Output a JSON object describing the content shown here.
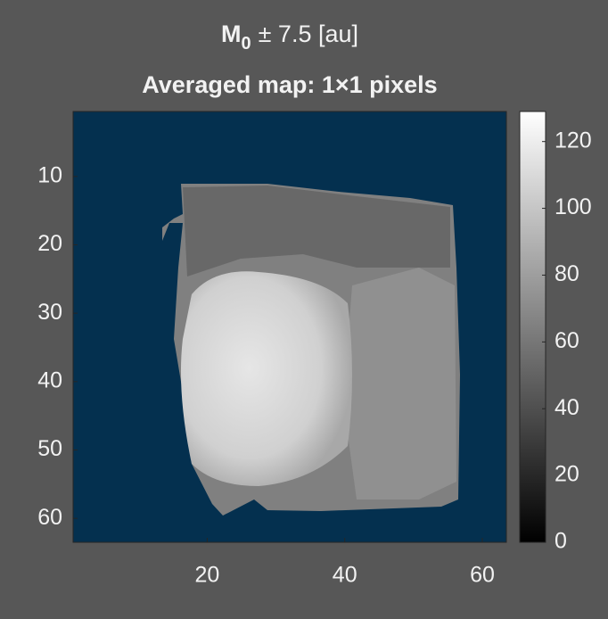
{
  "chart_data": {
    "type": "image",
    "title": {
      "symbol": "M",
      "subscript": "0",
      "rest": "± 7.5 [au]"
    },
    "subtitle": "Averaged map: 1×1 pixels",
    "colormap": "gray",
    "background_color": "#04304f",
    "xlim": [
      0.5,
      63.5
    ],
    "xticks": [
      20,
      40,
      60
    ],
    "ylim": [
      0.5,
      63.5
    ],
    "yticks": [
      10,
      20,
      30,
      40,
      50,
      60
    ],
    "y_reversed": true,
    "colorbar": {
      "clim": [
        0,
        129
      ],
      "ticks": [
        0,
        20,
        40,
        60,
        80,
        100,
        120
      ]
    }
  }
}
